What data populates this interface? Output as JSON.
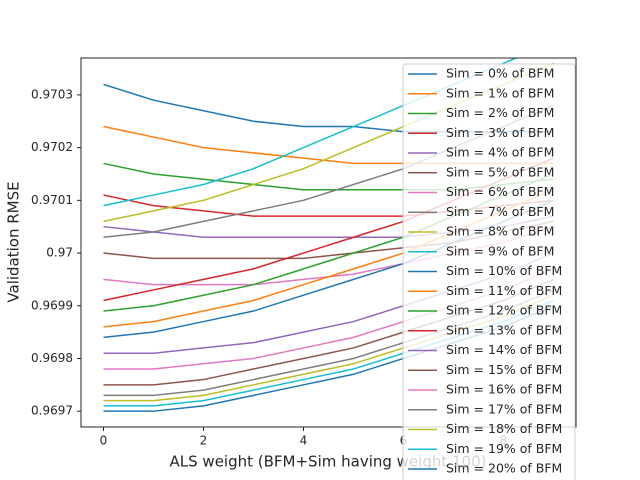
{
  "chart_data": {
    "type": "line",
    "xlabel": "ALS weight (BFM+Sim having weight 100)",
    "ylabel": "Validation RMSE",
    "x": [
      0,
      1,
      2,
      3,
      4,
      5,
      6,
      7,
      8,
      9
    ],
    "xlim": [
      -0.45,
      9.45
    ],
    "xticks": [
      0,
      2,
      4,
      6,
      8
    ],
    "ylim": [
      0.96967,
      0.97037
    ],
    "yticks": [
      0.9697,
      0.9698,
      0.9699,
      0.97,
      0.9701,
      0.9702,
      0.9703
    ],
    "yticklabels_note_free": true,
    "legend": "upper right",
    "series": [
      {
        "name": "Sim = 0% of BFM",
        "color": "#1f77b4",
        "values": [
          0.97032,
          0.97029,
          0.97027,
          0.97025,
          0.97024,
          0.97024,
          0.97023,
          0.97023,
          0.97023,
          0.97023
        ]
      },
      {
        "name": "Sim = 1% of BFM",
        "color": "#ff7f0e",
        "values": [
          0.97024,
          0.97022,
          0.9702,
          0.97019,
          0.97018,
          0.97017,
          0.97017,
          0.97017,
          0.97017,
          0.97017
        ]
      },
      {
        "name": "Sim = 2% of BFM",
        "color": "#2ca02c",
        "values": [
          0.97017,
          0.97015,
          0.97014,
          0.97013,
          0.97012,
          0.97012,
          0.97012,
          0.97012,
          0.97013,
          0.97014
        ]
      },
      {
        "name": "Sim = 3% of BFM",
        "color": "#d62728",
        "values": [
          0.97011,
          0.97009,
          0.97008,
          0.97007,
          0.97007,
          0.97007,
          0.97007,
          0.97008,
          0.97009,
          0.9701
        ]
      },
      {
        "name": "Sim = 4% of BFM",
        "color": "#9467bd",
        "values": [
          0.97005,
          0.97004,
          0.97003,
          0.97003,
          0.97003,
          0.97003,
          0.97003,
          0.97004,
          0.97005,
          0.97007
        ]
      },
      {
        "name": "Sim = 5% of BFM",
        "color": "#8c564b",
        "values": [
          0.97,
          0.96999,
          0.96999,
          0.96999,
          0.96999,
          0.97,
          0.97001,
          0.97002,
          0.97004,
          0.97006
        ]
      },
      {
        "name": "Sim = 6% of BFM",
        "color": "#e377c2",
        "values": [
          0.96995,
          0.96994,
          0.96994,
          0.96994,
          0.96995,
          0.96996,
          0.96998,
          0.97,
          0.97002,
          0.97005
        ]
      },
      {
        "name": "Sim = 7% of BFM",
        "color": "#7f7f7f",
        "values": [
          0.97003,
          0.97004,
          0.97006,
          0.97008,
          0.9701,
          0.97013,
          0.97016,
          0.9702,
          0.97024,
          0.97028
        ]
      },
      {
        "name": "Sim = 8% of BFM",
        "color": "#bcbd22",
        "values": [
          0.97006,
          0.97008,
          0.9701,
          0.97013,
          0.97016,
          0.9702,
          0.97024,
          0.97028,
          0.97032,
          0.97036
        ]
      },
      {
        "name": "Sim = 9% of BFM",
        "color": "#17becf",
        "values": [
          0.97009,
          0.97011,
          0.97013,
          0.97016,
          0.9702,
          0.97024,
          0.97028,
          0.97032,
          0.97036,
          0.9704
        ]
      },
      {
        "name": "Sim = 10% of BFM",
        "color": "#1f77b4",
        "values": [
          0.96984,
          0.96985,
          0.96987,
          0.96989,
          0.96992,
          0.96995,
          0.96998,
          0.97002,
          0.97006,
          0.9701
        ]
      },
      {
        "name": "Sim = 11% of BFM",
        "color": "#ff7f0e",
        "values": [
          0.96986,
          0.96987,
          0.96989,
          0.96991,
          0.96994,
          0.96997,
          0.97,
          0.97004,
          0.97008,
          0.97012
        ]
      },
      {
        "name": "Sim = 12% of BFM",
        "color": "#2ca02c",
        "values": [
          0.96989,
          0.9699,
          0.96992,
          0.96994,
          0.96997,
          0.97,
          0.97003,
          0.97007,
          0.97011,
          0.97015
        ]
      },
      {
        "name": "Sim = 13% of BFM",
        "color": "#d62728",
        "values": [
          0.96991,
          0.96993,
          0.96995,
          0.96997,
          0.97,
          0.97003,
          0.97006,
          0.9701,
          0.97014,
          0.97018
        ]
      },
      {
        "name": "Sim = 14% of BFM",
        "color": "#9467bd",
        "values": [
          0.96981,
          0.96981,
          0.96982,
          0.96983,
          0.96985,
          0.96987,
          0.9699,
          0.96993,
          0.96996,
          0.97
        ]
      },
      {
        "name": "Sim = 15% of BFM",
        "color": "#8c564b",
        "values": [
          0.96975,
          0.96975,
          0.96976,
          0.96978,
          0.9698,
          0.96982,
          0.96985,
          0.96988,
          0.96991,
          0.96995
        ]
      },
      {
        "name": "Sim = 16% of BFM",
        "color": "#e377c2",
        "values": [
          0.96978,
          0.96978,
          0.96979,
          0.9698,
          0.96982,
          0.96984,
          0.96987,
          0.9699,
          0.96993,
          0.96997
        ]
      },
      {
        "name": "Sim = 17% of BFM",
        "color": "#7f7f7f",
        "values": [
          0.96973,
          0.96973,
          0.96974,
          0.96976,
          0.96978,
          0.9698,
          0.96983,
          0.96986,
          0.96989,
          0.96993
        ]
      },
      {
        "name": "Sim = 18% of BFM",
        "color": "#bcbd22",
        "values": [
          0.96972,
          0.96972,
          0.96973,
          0.96975,
          0.96977,
          0.96979,
          0.96982,
          0.96985,
          0.96988,
          0.96992
        ]
      },
      {
        "name": "Sim = 19% of BFM",
        "color": "#17becf",
        "values": [
          0.96971,
          0.96971,
          0.96972,
          0.96974,
          0.96976,
          0.96978,
          0.96981,
          0.96984,
          0.96987,
          0.96991
        ]
      },
      {
        "name": "Sim = 20% of BFM",
        "color": "#1f77b4",
        "values": [
          0.9697,
          0.9697,
          0.96971,
          0.96973,
          0.96975,
          0.96977,
          0.9698,
          0.96983,
          0.96986,
          0.9699
        ]
      }
    ]
  }
}
